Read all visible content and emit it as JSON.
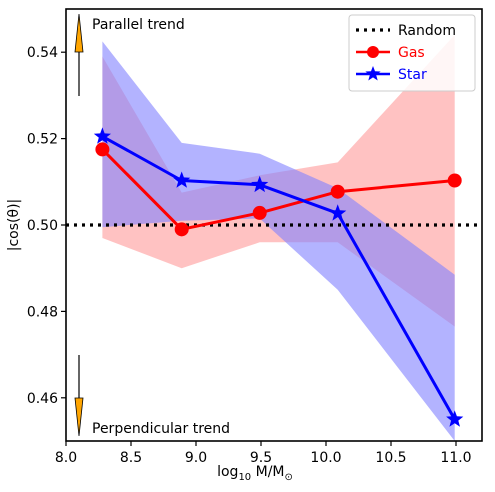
{
  "chart_data": {
    "type": "line",
    "title": "",
    "xlabel_main": "log",
    "xlabel_sub": "10",
    "xlabel_rest": " M/M",
    "xlabel_sun": "⊙",
    "ylabel": "|cos(θ)|",
    "xlim": [
      8.0,
      11.2
    ],
    "ylim": [
      0.45,
      0.55
    ],
    "xticks": [
      8.0,
      8.5,
      9.0,
      9.5,
      10.0,
      10.5,
      11.0
    ],
    "xtick_labels": [
      "8.0",
      "8.5",
      "9.0",
      "9.5",
      "10.0",
      "10.5",
      "11.0"
    ],
    "yticks": [
      0.46,
      0.48,
      0.5,
      0.52,
      0.54
    ],
    "ytick_labels": [
      "0.46",
      "0.48",
      "0.50",
      "0.52",
      "0.54"
    ],
    "reference_line": {
      "name": "Random",
      "y": 0.5,
      "color": "#000000"
    },
    "series": [
      {
        "name": "Gas",
        "color": "#ff0000",
        "band_color": "#ff9999",
        "marker": "circle",
        "x": [
          8.28,
          8.89,
          9.49,
          10.09,
          10.99
        ],
        "y": [
          0.5175,
          0.499,
          0.5028,
          0.5077,
          0.5103
        ],
        "lower": [
          0.497,
          0.49,
          0.496,
          0.496,
          0.4765
        ],
        "upper": [
          0.539,
          0.5075,
          0.5115,
          0.5145,
          0.544
        ]
      },
      {
        "name": "Star",
        "color": "#0000ff",
        "band_color": "#8080ff",
        "marker": "star",
        "x": [
          8.28,
          8.89,
          9.49,
          10.09,
          10.99
        ],
        "y": [
          0.5205,
          0.5103,
          0.5093,
          0.5027,
          0.455
        ],
        "lower": [
          0.4995,
          0.501,
          0.5015,
          0.485,
          0.432
        ],
        "upper": [
          0.5425,
          0.519,
          0.5165,
          0.5085,
          0.4885
        ]
      }
    ],
    "legend": {
      "position": "top-right",
      "entries": [
        "Random",
        "Gas",
        "Star"
      ]
    },
    "annotations": {
      "top": "Parallel trend",
      "bottom": "Perpendicular trend",
      "arrow_color": "#ffa500"
    },
    "grid": false
  }
}
